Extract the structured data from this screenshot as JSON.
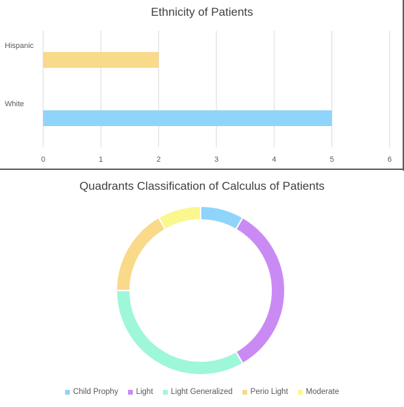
{
  "chart_data": [
    {
      "type": "bar",
      "orientation": "horizontal",
      "title": "Ethnicity of Patients",
      "categories": [
        "Hispanic",
        "White"
      ],
      "values": [
        2,
        5
      ],
      "colors": [
        "#F9D98A",
        "#8FD4FB"
      ],
      "xlim": [
        0,
        6
      ],
      "xticks": [
        "0",
        "1",
        "2",
        "3",
        "4",
        "5",
        "6"
      ],
      "grid": true
    },
    {
      "type": "pie",
      "variant": "donut",
      "title": "Quadrants Classification of Calculus of Patients",
      "categories": [
        "Child Prophy",
        "Light",
        "Light Generalized",
        "Perio Light",
        "Moderate"
      ],
      "values": [
        1,
        4,
        4,
        2,
        1
      ],
      "colors": [
        "#8FD4FB",
        "#C98BF3",
        "#9EF7D8",
        "#F9D98A",
        "#FBF78F"
      ],
      "legend_position": "bottom"
    }
  ]
}
